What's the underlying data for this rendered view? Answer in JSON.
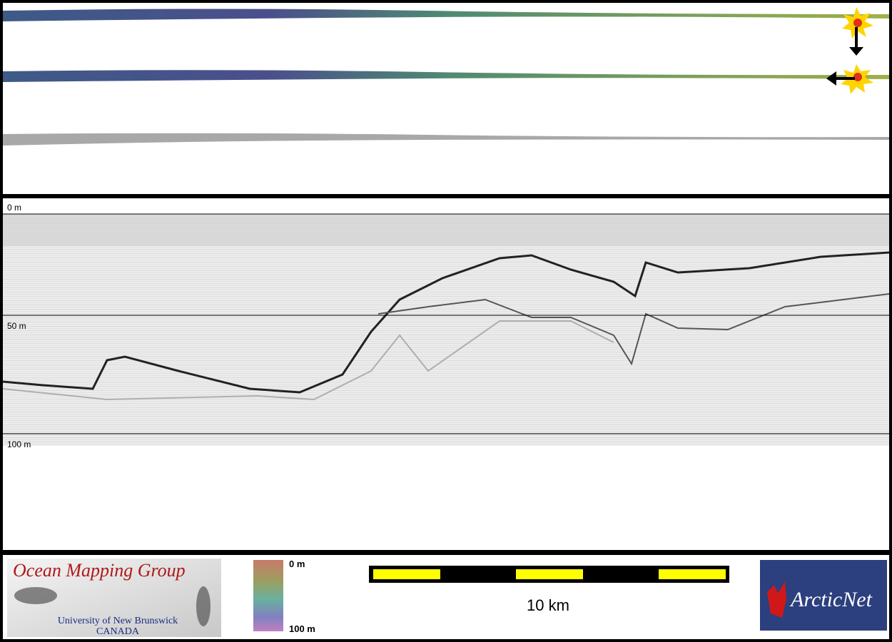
{
  "profile": {
    "depth_labels": [
      "0 m",
      "50 m",
      "100 m"
    ]
  },
  "footer": {
    "logo": {
      "title": "Ocean Mapping Group",
      "university": "University of New Brunswick",
      "country": "CANADA"
    },
    "colorbar": {
      "top": "0 m",
      "bottom": "100 m"
    },
    "scale_bar": {
      "label": "10 km"
    },
    "partner": "ArcticNet"
  }
}
